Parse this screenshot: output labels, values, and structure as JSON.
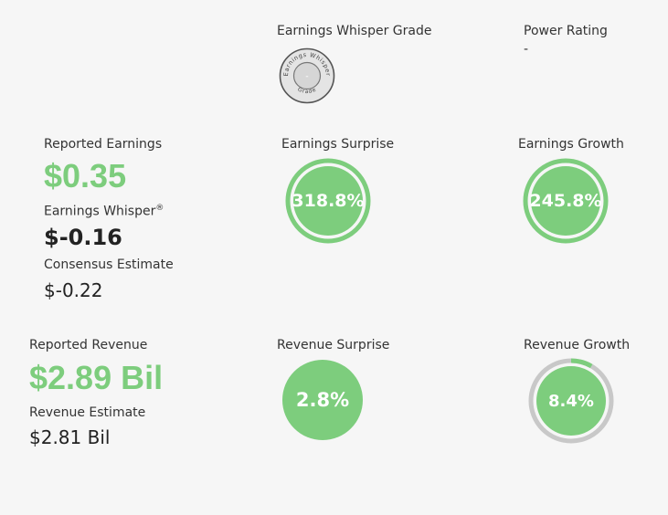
{
  "grade": {
    "title": "Earnings Whisper Grade",
    "badge_top_text": "Earnings Whisper",
    "badge_center": "-",
    "badge_bottom_text": "Grade"
  },
  "power": {
    "title": "Power Rating",
    "value": "-"
  },
  "earnings": {
    "reported_label": "Reported Earnings",
    "reported_value": "$0.35",
    "whisper_label": "Earnings Whisper",
    "whisper_mark": "®",
    "whisper_value": "$-0.16",
    "consensus_label": "Consensus Estimate",
    "consensus_value": "$-0.22"
  },
  "earnings_surprise": {
    "title": "Earnings Surprise",
    "value": "318.8%",
    "fill": 1.0
  },
  "earnings_growth": {
    "title": "Earnings Growth",
    "value": "245.8%",
    "fill": 1.0
  },
  "revenue": {
    "reported_label": "Reported Revenue",
    "reported_value": "$2.89 Bil",
    "estimate_label": "Revenue Estimate",
    "estimate_value": "$2.81 Bil"
  },
  "revenue_surprise": {
    "title": "Revenue Surprise",
    "value": "2.8%"
  },
  "revenue_growth": {
    "title": "Revenue Growth",
    "value": "8.4%",
    "fill": 0.084
  },
  "colors": {
    "green": "#7dcd7d",
    "track_gray": "#c8c8c8",
    "badge_fill": "#d9d9d9",
    "badge_stroke": "#555555"
  }
}
